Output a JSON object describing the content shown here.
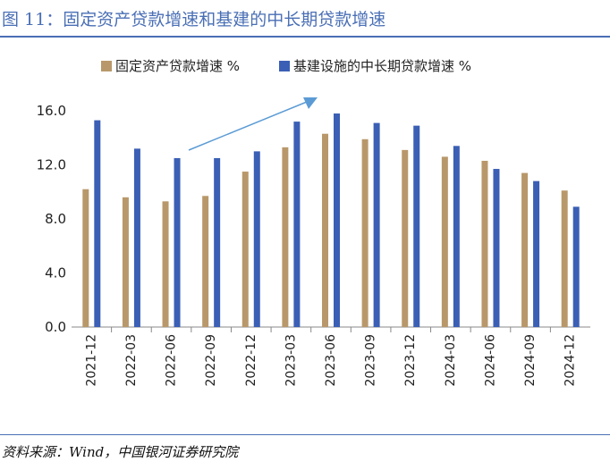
{
  "figure": {
    "title": "图 11：固定资产贷款增速和基建的中长期贷款增速",
    "source": "资料来源：Wind，中国银河证券研究院"
  },
  "colors": {
    "series_1": "#B8986A",
    "series_2": "#3A5FB4",
    "arrow": "#5B9BD5",
    "rule": "#4A6FB5"
  },
  "chart_data": {
    "type": "bar",
    "categories": [
      "2021-12",
      "2022-03",
      "2022-06",
      "2022-09",
      "2022-12",
      "2023-03",
      "2023-06",
      "2023-09",
      "2023-12",
      "2024-03",
      "2024-06",
      "2024-09",
      "2024-12"
    ],
    "series": [
      {
        "name": "固定资产贷款增速 %",
        "values": [
          10.2,
          9.6,
          9.3,
          9.7,
          11.5,
          13.3,
          14.3,
          13.9,
          13.1,
          12.6,
          12.3,
          11.4,
          10.1
        ]
      },
      {
        "name": "基建设施的中长期贷款增速 %",
        "values": [
          15.3,
          13.2,
          12.5,
          12.5,
          13.0,
          15.2,
          15.8,
          15.1,
          14.9,
          13.4,
          11.7,
          10.8,
          8.9
        ]
      }
    ],
    "yticks": [
      "0.0",
      "4.0",
      "8.0",
      "12.0",
      "16.0"
    ],
    "ylim": [
      0,
      16
    ],
    "legend_position": "top"
  }
}
